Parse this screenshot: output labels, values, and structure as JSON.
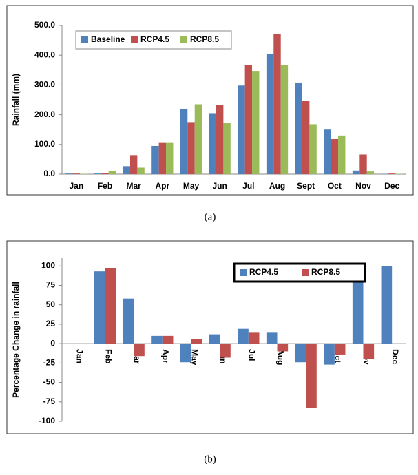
{
  "chart_data": [
    {
      "type": "bar",
      "caption": "(a)",
      "ylabel": "Rainfall (mm)",
      "categories": [
        "Jan",
        "Feb",
        "Mar",
        "Apr",
        "May",
        "Jun",
        "Jul",
        "Aug",
        "Sept",
        "Oct",
        "Nov",
        "Dec"
      ],
      "series": [
        {
          "name": "Baseline",
          "color": "#4f81bd",
          "values": [
            2,
            2,
            27,
            95,
            220,
            205,
            298,
            405,
            308,
            150,
            12,
            1
          ]
        },
        {
          "name": "RCP4.5",
          "color": "#c0504d",
          "values": [
            2,
            4,
            64,
            105,
            175,
            233,
            367,
            472,
            246,
            118,
            66,
            2
          ]
        },
        {
          "name": "RCP8.5",
          "color": "#9bbb59",
          "values": [
            1,
            10,
            22,
            105,
            235,
            172,
            347,
            367,
            168,
            130,
            9,
            1
          ]
        }
      ],
      "ylim": [
        0,
        500
      ],
      "yticks": [
        {
          "value": 0,
          "label": "0.0"
        },
        {
          "value": 100,
          "label": "100.0"
        },
        {
          "value": 200,
          "label": "200.0"
        },
        {
          "value": 300,
          "label": "300.0"
        },
        {
          "value": 400,
          "label": "400.0"
        },
        {
          "value": 500,
          "label": "500.0"
        }
      ],
      "legend": "upper left"
    },
    {
      "type": "bar",
      "caption": "(b)",
      "ylabel": "Percentage Change in rainfall",
      "categories": [
        "Jan",
        "Feb",
        "Mar",
        "Apr",
        "May",
        "Jun",
        "Jul",
        "Aug",
        "Sept",
        "Oct",
        "Nov",
        "Dec"
      ],
      "series": [
        {
          "name": "RCP4.5",
          "color": "#4f81bd",
          "values": [
            0,
            93,
            58,
            10,
            -24,
            12,
            19,
            14,
            -24,
            -27,
            83,
            100
          ]
        },
        {
          "name": "RCP8.5",
          "color": "#c0504d",
          "values": [
            0,
            97,
            -16,
            10,
            6,
            -18,
            14,
            -10,
            -83,
            -14,
            -20,
            0
          ]
        }
      ],
      "ylim": [
        -100,
        110
      ],
      "yticks": [
        -100,
        -75,
        -50,
        -25,
        0,
        25,
        50,
        75,
        100
      ],
      "legend": "upper right"
    }
  ]
}
